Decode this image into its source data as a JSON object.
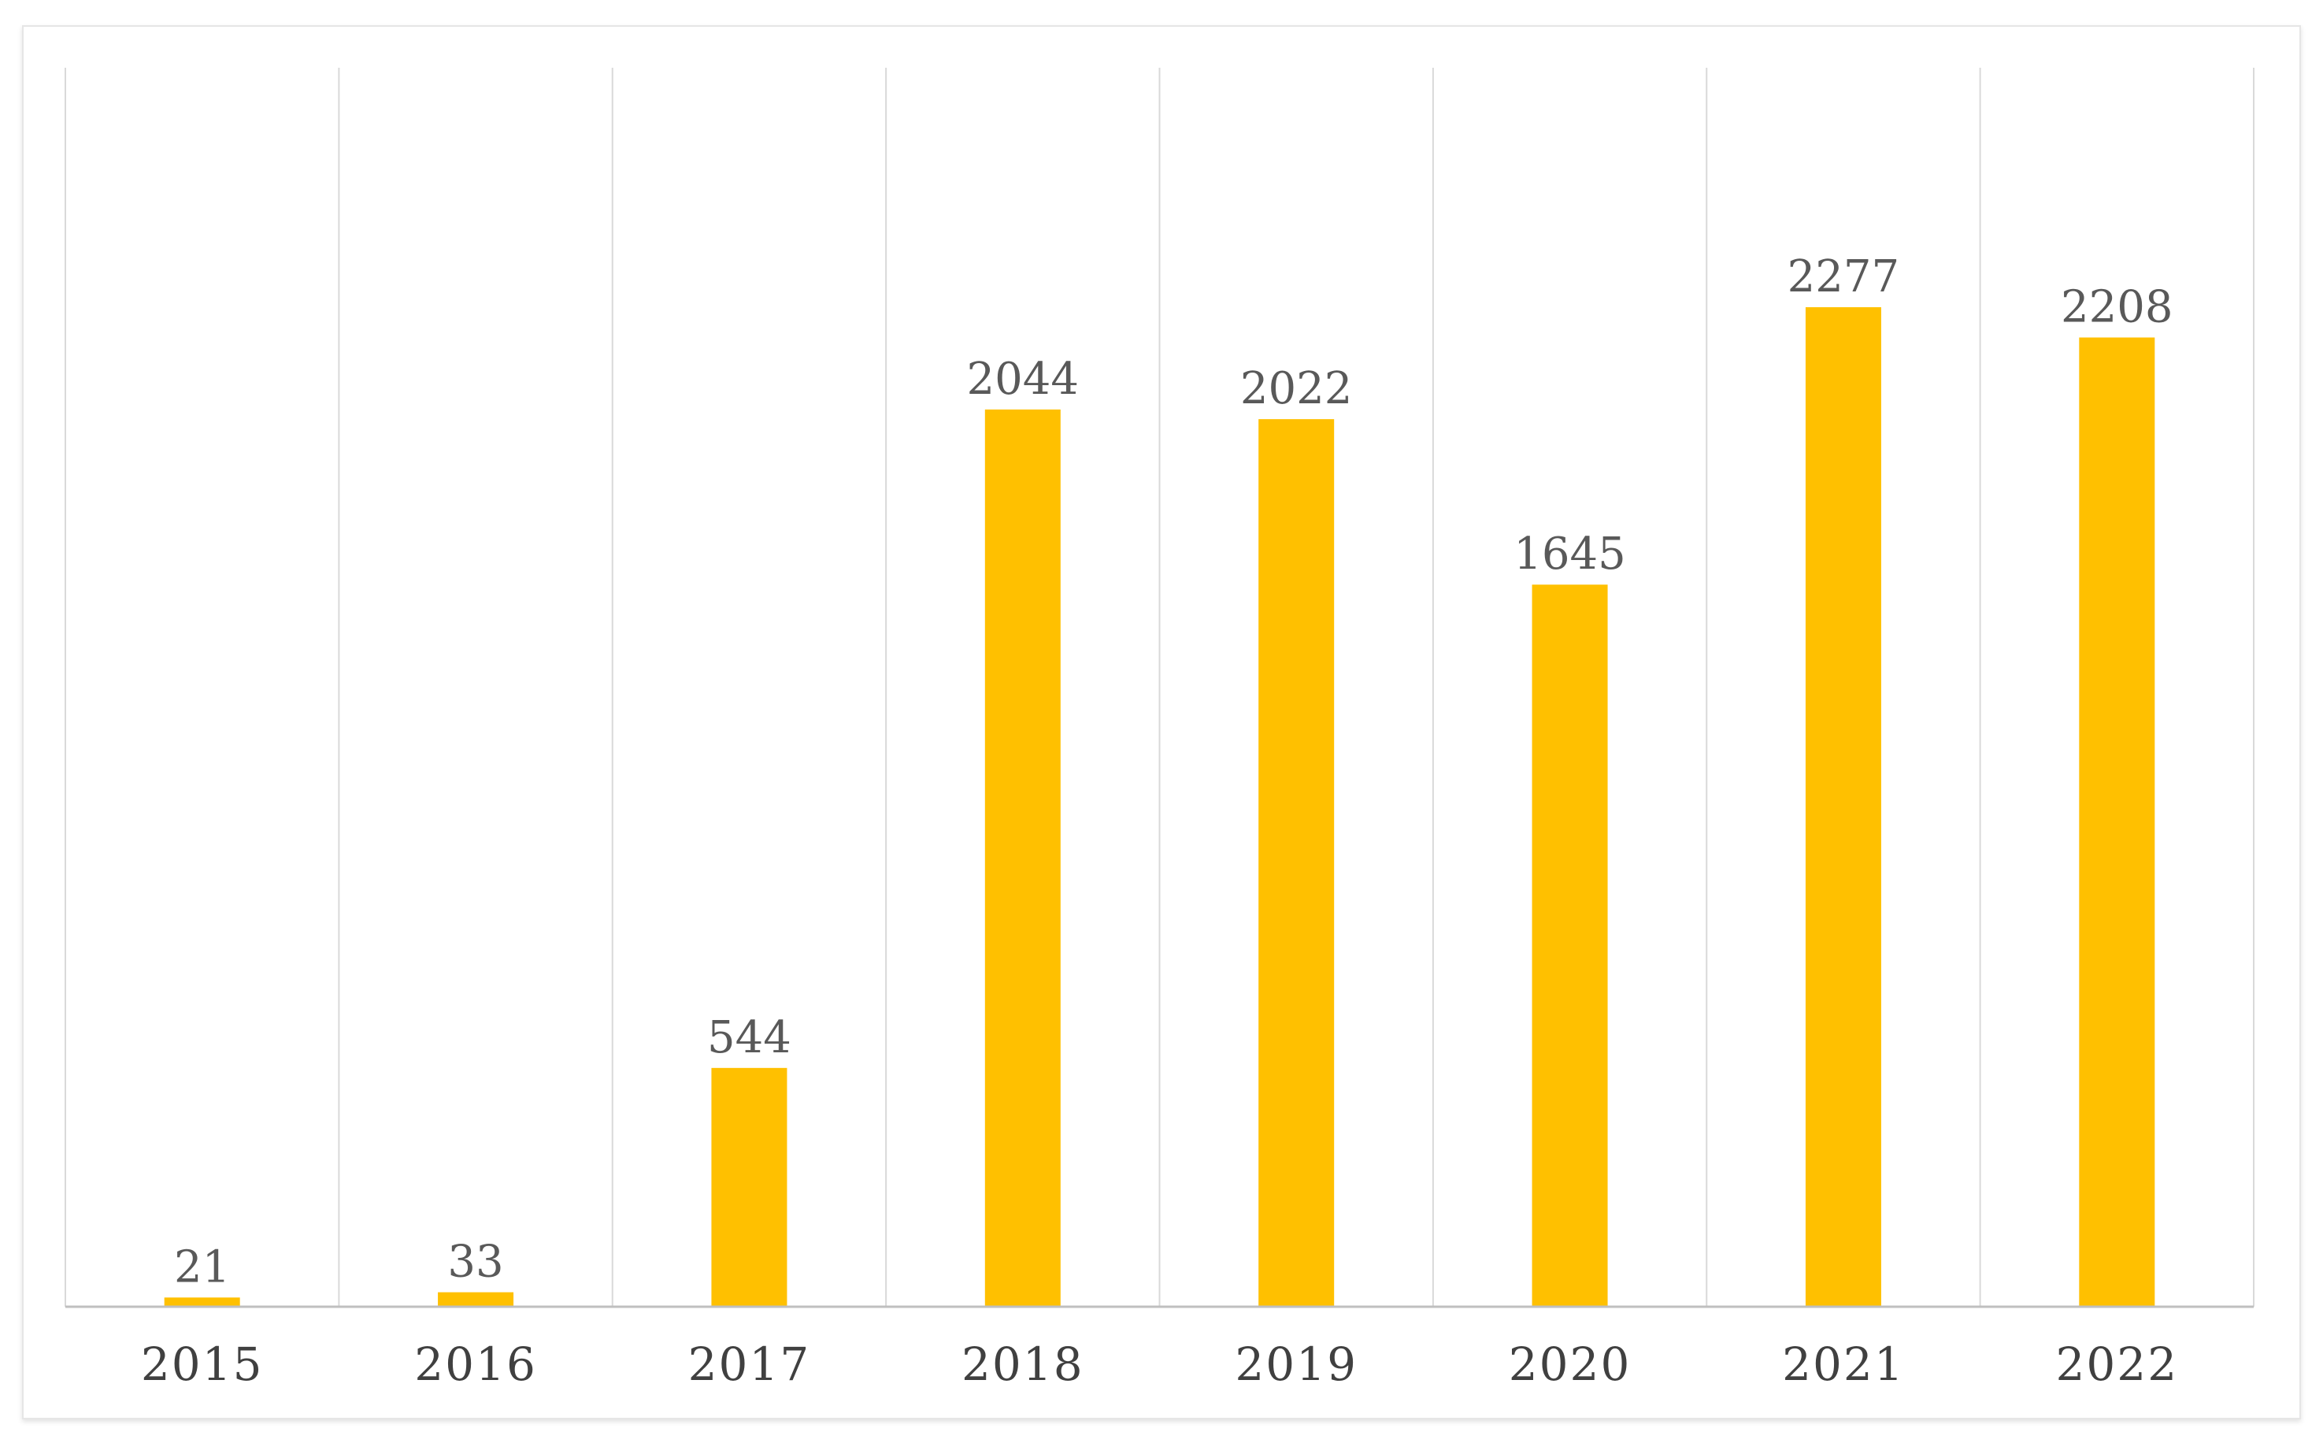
{
  "chart_data": {
    "type": "bar",
    "categories": [
      "2015",
      "2016",
      "2017",
      "2018",
      "2019",
      "2020",
      "2021",
      "2022"
    ],
    "values": [
      21,
      33,
      544,
      2044,
      2022,
      1645,
      2277,
      2208
    ],
    "data_labels": [
      "21",
      "33",
      "544",
      "2044",
      "2022",
      "1645",
      "2277",
      "2208"
    ],
    "title": "",
    "xlabel": "",
    "ylabel": "",
    "ylim": [
      0,
      2500
    ],
    "grid": "vertical",
    "legend": "none",
    "colors": {
      "bar": "#FFC000",
      "grid": "#d9d9d9",
      "axis": "#bfbfbf",
      "label": "#595959",
      "tick": "#404040"
    }
  }
}
